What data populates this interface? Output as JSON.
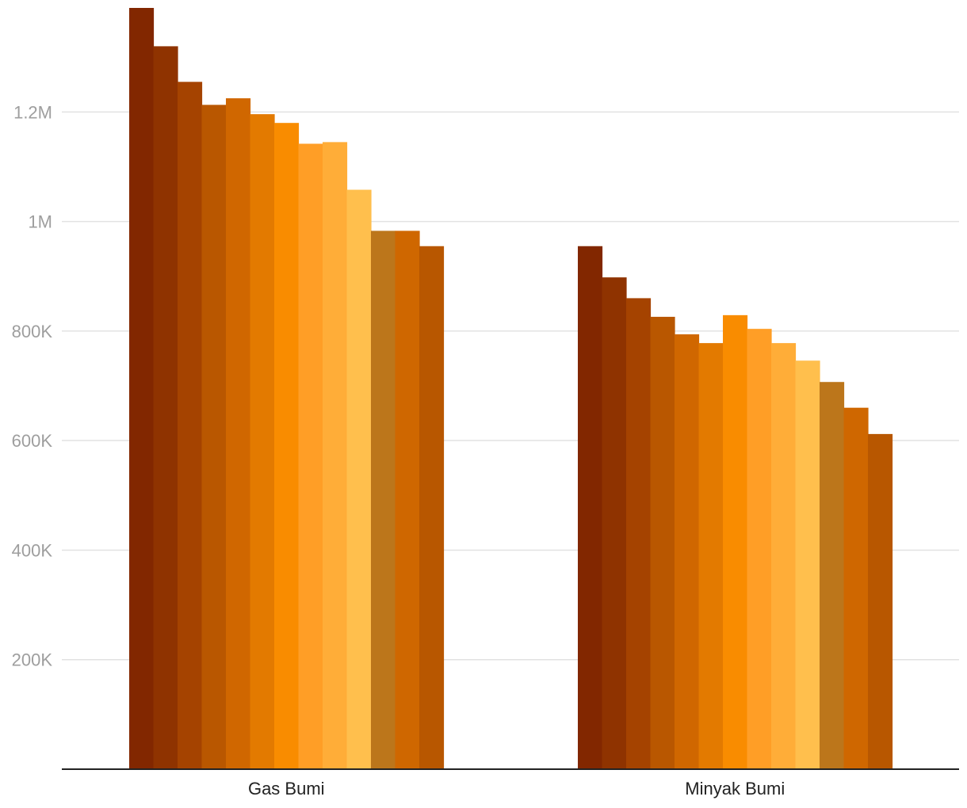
{
  "chart_data": {
    "type": "bar",
    "categories": [
      "Gas Bumi",
      "Minyak Bumi"
    ],
    "series": [
      {
        "values": [
          1390000,
          955000
        ],
        "color": "#822700"
      },
      {
        "values": [
          1320000,
          898000
        ],
        "color": "#8f3300"
      },
      {
        "values": [
          1255000,
          860000
        ],
        "color": "#a54300"
      },
      {
        "values": [
          1213000,
          826000
        ],
        "color": "#b95700"
      },
      {
        "values": [
          1225000,
          794000
        ],
        "color": "#d06700"
      },
      {
        "values": [
          1196000,
          778000
        ],
        "color": "#e37a00"
      },
      {
        "values": [
          1180000,
          829000
        ],
        "color": "#f98c00"
      },
      {
        "values": [
          1142000,
          804000
        ],
        "color": "#ff9e26"
      },
      {
        "values": [
          1145000,
          778000
        ],
        "color": "#ffad38"
      },
      {
        "values": [
          1058000,
          746000
        ],
        "color": "#ffbf4d"
      },
      {
        "values": [
          983000,
          707000
        ],
        "color": "#bc761b"
      },
      {
        "values": [
          983000,
          660000
        ],
        "color": "#cf6700"
      },
      {
        "values": [
          955000,
          612000
        ],
        "color": "#b85700"
      }
    ],
    "y_ticks": [
      {
        "value": 200000,
        "label": "200K"
      },
      {
        "value": 400000,
        "label": "400K"
      },
      {
        "value": 600000,
        "label": "600K"
      },
      {
        "value": 800000,
        "label": "800K"
      },
      {
        "value": 1000000,
        "label": "1M"
      },
      {
        "value": 1200000,
        "label": "1.2M"
      }
    ],
    "ylim": [
      0,
      1390000
    ],
    "grid": true,
    "legend": "none"
  }
}
